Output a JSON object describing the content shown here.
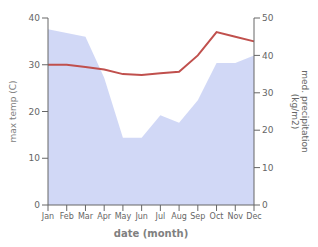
{
  "chart_data": {
    "type": "line",
    "categories": [
      "Jan",
      "Feb",
      "Mar",
      "Apr",
      "May",
      "Jun",
      "Jul",
      "Aug",
      "Sep",
      "Oct",
      "Nov",
      "Dec"
    ],
    "series": [
      {
        "type": "area",
        "color": "#b3bef0",
        "axis": "y2",
        "values": [
          47.0,
          46.0,
          45.0,
          34.0,
          18.0,
          18.0,
          24.0,
          22.0,
          28.0,
          38.0,
          38.0,
          40.0
        ]
      },
      {
        "type": "line",
        "color": "#c0504d",
        "values": [
          30.0,
          30.0,
          29.5,
          29.0,
          28.0,
          27.8,
          28.2,
          28.5,
          32.0,
          37.0,
          36.0,
          35.0
        ]
      }
    ],
    "xlabel": "date (month)",
    "ylabel": "max temp (C)",
    "y2label": "med. precipitation\n(kg/m2)",
    "ylim": [
      0,
      40
    ],
    "yticks": [
      0,
      10,
      20,
      30,
      40
    ],
    "y2lim": [
      0,
      50
    ],
    "y2ticks": [
      0,
      10,
      20,
      30,
      40,
      50
    ],
    "grid": false
  }
}
